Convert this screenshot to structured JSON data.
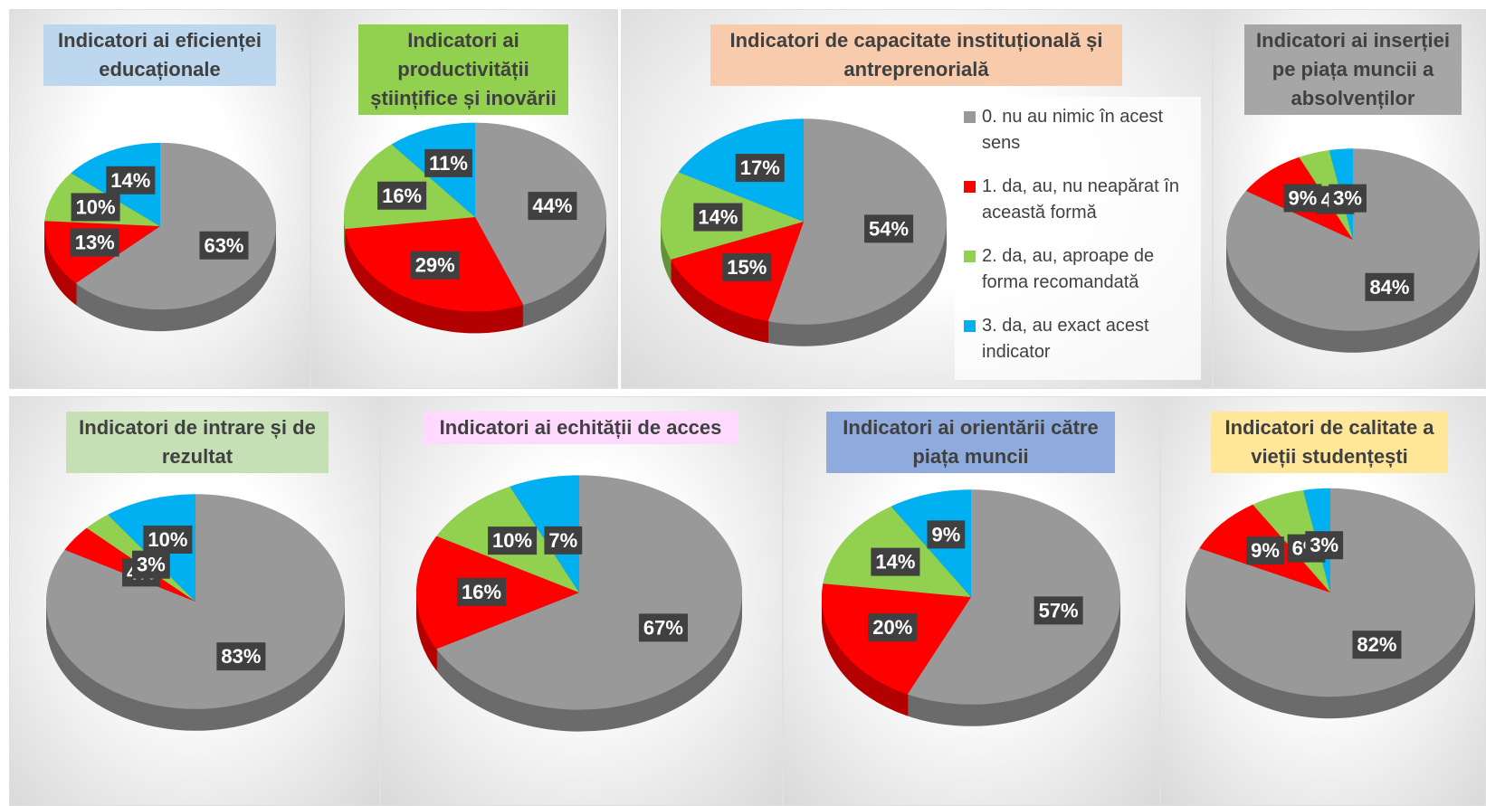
{
  "legend": {
    "labels": [
      "0. nu au nimic în acest sens",
      "1. da, au, nu neapărat în această formă",
      "2. da, au, aproape de forma recomandată",
      "3. da, au exact acest indicator"
    ],
    "colors": [
      "#999999",
      "#ff0000",
      "#92d050",
      "#00b0f0"
    ]
  },
  "chart_data": [
    {
      "type": "pie",
      "title": "Indicatori ai eficienței educaționale",
      "title_bg": "#bdd7ee",
      "values": [
        63,
        13,
        10,
        14
      ],
      "value_labels": [
        "63%",
        "13%",
        "10%",
        "14%"
      ]
    },
    {
      "type": "pie",
      "title": "Indicatori ai productivității științifice și inovării",
      "title_bg": "#92d050",
      "values": [
        44,
        29,
        16,
        11
      ],
      "value_labels": [
        "44%",
        "29%",
        "16%",
        "11%"
      ]
    },
    {
      "type": "pie",
      "title": "Indicatori de capacitate instituțională și antreprenorială",
      "title_bg": "#f8cbad",
      "values": [
        54,
        15,
        14,
        17
      ],
      "value_labels": [
        "54%",
        "15%",
        "14%",
        "17%"
      ]
    },
    {
      "type": "pie",
      "title": "Indicatori ai inserției pe piața muncii a absolvenților",
      "title_bg": "#a6a6a6",
      "values": [
        84,
        9,
        4,
        3
      ],
      "value_labels": [
        "84%",
        "9%",
        "4%",
        "3%"
      ]
    },
    {
      "type": "pie",
      "title": "Indicatori de intrare și de rezultat",
      "title_bg": "#c5e0b4",
      "values": [
        83,
        4,
        3,
        10
      ],
      "value_labels": [
        "83%",
        "4%",
        "3%",
        "10%"
      ]
    },
    {
      "type": "pie",
      "title": "Indicatori ai echității de acces",
      "title_bg": "#ffd9ff",
      "values": [
        67,
        16,
        10,
        7
      ],
      "value_labels": [
        "67%",
        "16%",
        "10%",
        "7%"
      ]
    },
    {
      "type": "pie",
      "title": "Indicatori ai orientării către piața muncii",
      "title_bg": "#8faadc",
      "values": [
        57,
        20,
        14,
        9
      ],
      "value_labels": [
        "57%",
        "20%",
        "14%",
        "9%"
      ]
    },
    {
      "type": "pie",
      "title": "Indicatori de calitate a vieții studențești",
      "title_bg": "#ffe699",
      "values": [
        82,
        9,
        6,
        3
      ],
      "value_labels": [
        "82%",
        "9%",
        "6%",
        "3%"
      ]
    }
  ]
}
